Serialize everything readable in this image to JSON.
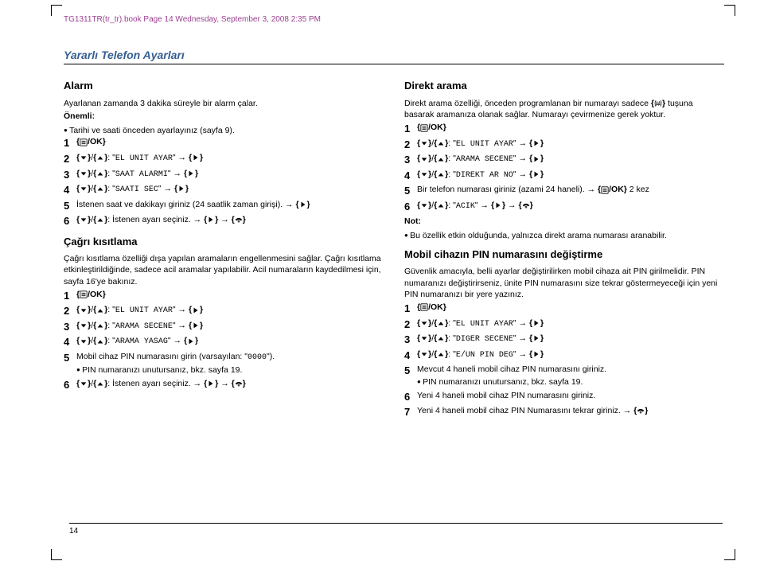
{
  "bookmark": "TG1311TR(tr_tr).book  Page 14  Wednesday, September 3, 2008  2:35 PM",
  "section_title": "Yararlı Telefon Ayarları",
  "page_number": "14",
  "icons": {
    "menu": "menu-icon",
    "down": "down-arrow-icon",
    "up": "up-arrow-icon",
    "right": "right-arrow-icon",
    "hangup": "hangup-icon",
    "hash": "hash-icon"
  },
  "left": {
    "alarm": {
      "title": "Alarm",
      "intro": "Ayarlanan zamanda 3 dakika süreyle bir alarm çalar.",
      "important_label": "Önemli:",
      "important_bullet": "Tarihi ve saati önceden ayarlayınız (sayfa 9).",
      "steps": [
        "{MENU/OK}",
        "{NAV}: \"EL UNIT AYAR\" → {RIGHT}",
        "{NAV}: \"SAAT ALARMI\" → {RIGHT}",
        "{NAV}: \"SAATI SEC\" → {RIGHT}",
        "İstenen saat ve dakikayı giriniz (24 saatlik zaman girişi). → {RIGHT}",
        "{NAV}: İstenen ayarı seçiniz. → {RIGHT} → {HANGUP}"
      ]
    },
    "call_block": {
      "title": "Çağrı kısıtlama",
      "intro": "Çağrı kısıtlama özelliği dışa yapılan aramaların engellenmesini sağlar. Çağrı kısıtlama etkinleştirildiğinde, sadece acil aramalar yapılabilir. Acil numaraların kaydedilmesi için, sayfa 16'ye bakınız.",
      "steps": [
        "{MENU/OK}",
        "{NAV}: \"EL UNIT AYAR\" → {RIGHT}",
        "{NAV}: \"ARAMA SECENE\" → {RIGHT}",
        "{NAV}: \"ARAMA YASAG\" → {RIGHT}",
        "Mobil cihaz PIN numarasını girin (varsayılan: \"0000\").",
        "{NAV}: İstenen ayarı seçiniz. → {RIGHT} → {HANGUP}"
      ],
      "step5_sub": "PIN numaranızı unutursanız, bkz. sayfa 19."
    }
  },
  "right": {
    "direct": {
      "title": "Direkt arama",
      "intro": "Direkt arama özelliği, önceden programlanan bir numarayı sadece {HASH} tuşuna basarak aramanıza olanak sağlar. Numarayı çevirmenize gerek yoktur.",
      "steps": [
        "{MENU/OK}",
        "{NAV}: \"EL UNIT AYAR\" → {RIGHT}",
        "{NAV}: \"ARAMA SECENE\" → {RIGHT}",
        "{NAV}: \"DIREKT AR NO\" → {RIGHT}",
        "Bir telefon numarası giriniz (azami 24 haneli). → {MENU/OK} 2 kez",
        "{NAV}: \"ACIK\" → {RIGHT} → {HANGUP}"
      ],
      "note_label": "Not:",
      "note_bullet": "Bu özellik etkin olduğunda, yalnızca direkt arama numarası aranabilir."
    },
    "pin": {
      "title": "Mobil cihazın PIN numarasını değiştirme",
      "intro": "Güvenlik amacıyla, belli ayarlar değiştirilirken mobil cihaza ait PIN girilmelidir. PIN numaranızı değiştirirseniz, ünite PIN numarasını size tekrar göstermeyeceği için yeni PIN numaranızı bir yere yazınız.",
      "steps": [
        "{MENU/OK}",
        "{NAV}: \"EL UNIT AYAR\" → {RIGHT}",
        "{NAV}: \"DIGER SECENE\" → {RIGHT}",
        "{NAV}: \"E/UN PIN DEG\" → {RIGHT}",
        "Mevcut 4 haneli mobil cihaz PIN numarasını giriniz.",
        "Yeni 4 haneli mobil cihaz PIN numarasını giriniz.",
        "Yeni 4 haneli mobil cihaz PIN Numarasını tekrar giriniz. → {HANGUP}"
      ],
      "step5_sub": "PIN numaranızı unutursanız, bkz. sayfa 19."
    }
  }
}
